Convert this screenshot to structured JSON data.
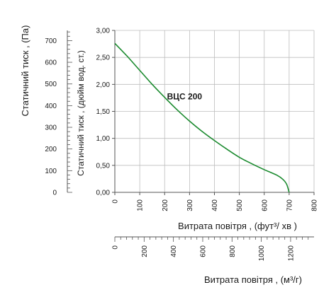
{
  "chart_data": {
    "type": "line",
    "series": [
      {
        "name": "ВЦС 200",
        "x": [
          0,
          25,
          50,
          100,
          150,
          200,
          250,
          300,
          350,
          400,
          450,
          500,
          550,
          600,
          650,
          675,
          690,
          700
        ],
        "y": [
          2.76,
          2.64,
          2.52,
          2.26,
          2.0,
          1.76,
          1.53,
          1.32,
          1.13,
          0.96,
          0.8,
          0.65,
          0.53,
          0.42,
          0.32,
          0.24,
          0.15,
          0.0
        ]
      }
    ],
    "axes": {
      "x_main": {
        "title": "Витрата повітря , (фут³/  хв )",
        "range": [
          0,
          800
        ],
        "ticks": [
          "0",
          "100",
          "200",
          "300",
          "400",
          "500",
          "600",
          "700",
          "800"
        ]
      },
      "y_main": {
        "title": "Статичний тиск , (дюйм вод. ст.)",
        "range": [
          0,
          3
        ],
        "ticks": [
          "0,00",
          "0,50",
          "1,00",
          "1,50",
          "2,00",
          "2,50",
          "3,00"
        ]
      },
      "y_pa": {
        "title": "Статичний тиск , (Па)",
        "range_pa": [
          0,
          747
        ],
        "ticks": [
          "0",
          "100",
          "200",
          "300",
          "400",
          "500",
          "600",
          "700"
        ]
      },
      "x_m3h": {
        "title": "Витрата повітря , (м³/г)",
        "range_m3h": [
          0,
          1360
        ],
        "ticks": [
          "0",
          "200",
          "400",
          "600",
          "800",
          "1000",
          "1200"
        ]
      }
    },
    "grid": true,
    "colors": {
      "series": "#1a8a2e",
      "grid": "#bdbdbd",
      "axis": "#555555"
    }
  }
}
